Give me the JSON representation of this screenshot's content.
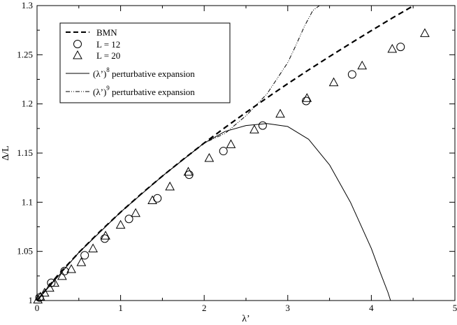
{
  "chart_data": {
    "type": "line",
    "xlabel": "λ’",
    "ylabel": "Δ/L",
    "xlim": [
      0,
      5
    ],
    "ylim": [
      1,
      1.3
    ],
    "x_ticks": [
      0,
      1,
      2,
      3,
      4,
      5
    ],
    "x_tick_labels": [
      "0",
      "1",
      "2",
      "3",
      "4",
      "5"
    ],
    "y_ticks": [
      1,
      1.05,
      1.1,
      1.15,
      1.2,
      1.25,
      1.3
    ],
    "y_tick_labels": [
      "1",
      "1.05",
      "1.1",
      "1.15",
      "1.2",
      "1.25",
      "1.3"
    ],
    "grid": false,
    "legend_position": "top-left",
    "series": [
      {
        "name": "BMN",
        "style": "dashed",
        "x": [
          0,
          0.25,
          0.5,
          0.75,
          1.0,
          1.25,
          1.5,
          1.75,
          2.0,
          2.25,
          2.5,
          2.75,
          3.0,
          3.25,
          3.5,
          3.75,
          4.0,
          4.25,
          4.5,
          4.75,
          5.0
        ],
        "y": [
          1.0,
          1.0259,
          1.0488,
          1.07,
          1.0899,
          1.1087,
          1.1266,
          1.1437,
          1.1602,
          1.176,
          1.1913,
          1.2061,
          1.2206,
          1.2346,
          1.2482,
          1.2615,
          1.2745,
          1.2873,
          1.2997,
          1.3118,
          1.3238
        ]
      },
      {
        "name": "L = 12",
        "style": "circle-markers",
        "x": [
          0.03,
          0.17,
          0.33,
          0.57,
          0.81,
          1.1,
          1.44,
          1.82,
          2.23,
          2.7,
          3.22,
          3.77,
          4.35
        ],
        "y": [
          1.003,
          1.018,
          1.03,
          1.046,
          1.063,
          1.083,
          1.104,
          1.128,
          1.152,
          1.178,
          1.203,
          1.23,
          1.258
        ]
      },
      {
        "name": "L = 20",
        "style": "triangle-markers",
        "x": [
          0.01,
          0.04,
          0.09,
          0.15,
          0.21,
          0.3,
          0.41,
          0.53,
          0.67,
          0.82,
          1.0,
          1.18,
          1.38,
          1.59,
          1.81,
          2.06,
          2.32,
          2.6,
          2.91,
          3.23,
          3.55,
          3.89,
          4.25,
          4.64
        ],
        "y": [
          1.001,
          1.004,
          1.008,
          1.013,
          1.018,
          1.025,
          1.032,
          1.039,
          1.053,
          1.066,
          1.077,
          1.089,
          1.102,
          1.116,
          1.131,
          1.145,
          1.159,
          1.174,
          1.19,
          1.206,
          1.222,
          1.239,
          1.256,
          1.272
        ]
      },
      {
        "name": "(λ’)^8 perturbative expansion",
        "style": "solid",
        "x": [
          0,
          0.5,
          1.0,
          1.5,
          2.0,
          2.25,
          2.5,
          2.75,
          3.0,
          3.25,
          3.5,
          3.75,
          4.0,
          4.1,
          4.2,
          4.23
        ],
        "y": [
          1.0,
          1.0488,
          1.0899,
          1.1266,
          1.1602,
          1.172,
          1.178,
          1.18,
          1.177,
          1.164,
          1.138,
          1.1,
          1.053,
          1.03,
          1.008,
          1.0
        ]
      },
      {
        "name": "(λ’)^9 perturbative expansion",
        "style": "dash-dot",
        "x": [
          0,
          0.5,
          1.0,
          1.5,
          2.0,
          2.25,
          2.5,
          2.75,
          3.0,
          3.1,
          3.2,
          3.3,
          3.38
        ],
        "y": [
          1.0,
          1.0488,
          1.0899,
          1.1266,
          1.1602,
          1.17,
          1.188,
          1.21,
          1.242,
          1.26,
          1.279,
          1.295,
          1.3
        ]
      }
    ]
  },
  "legend": {
    "items": [
      {
        "text": "BMN"
      },
      {
        "text": "L = 12"
      },
      {
        "text": "L = 20"
      },
      {
        "base": "(λ’)",
        "sup": "8",
        "rest": " perturbative expansion"
      },
      {
        "base": "(λ’)",
        "sup": "9",
        "rest": " perturbative expansion"
      }
    ]
  }
}
